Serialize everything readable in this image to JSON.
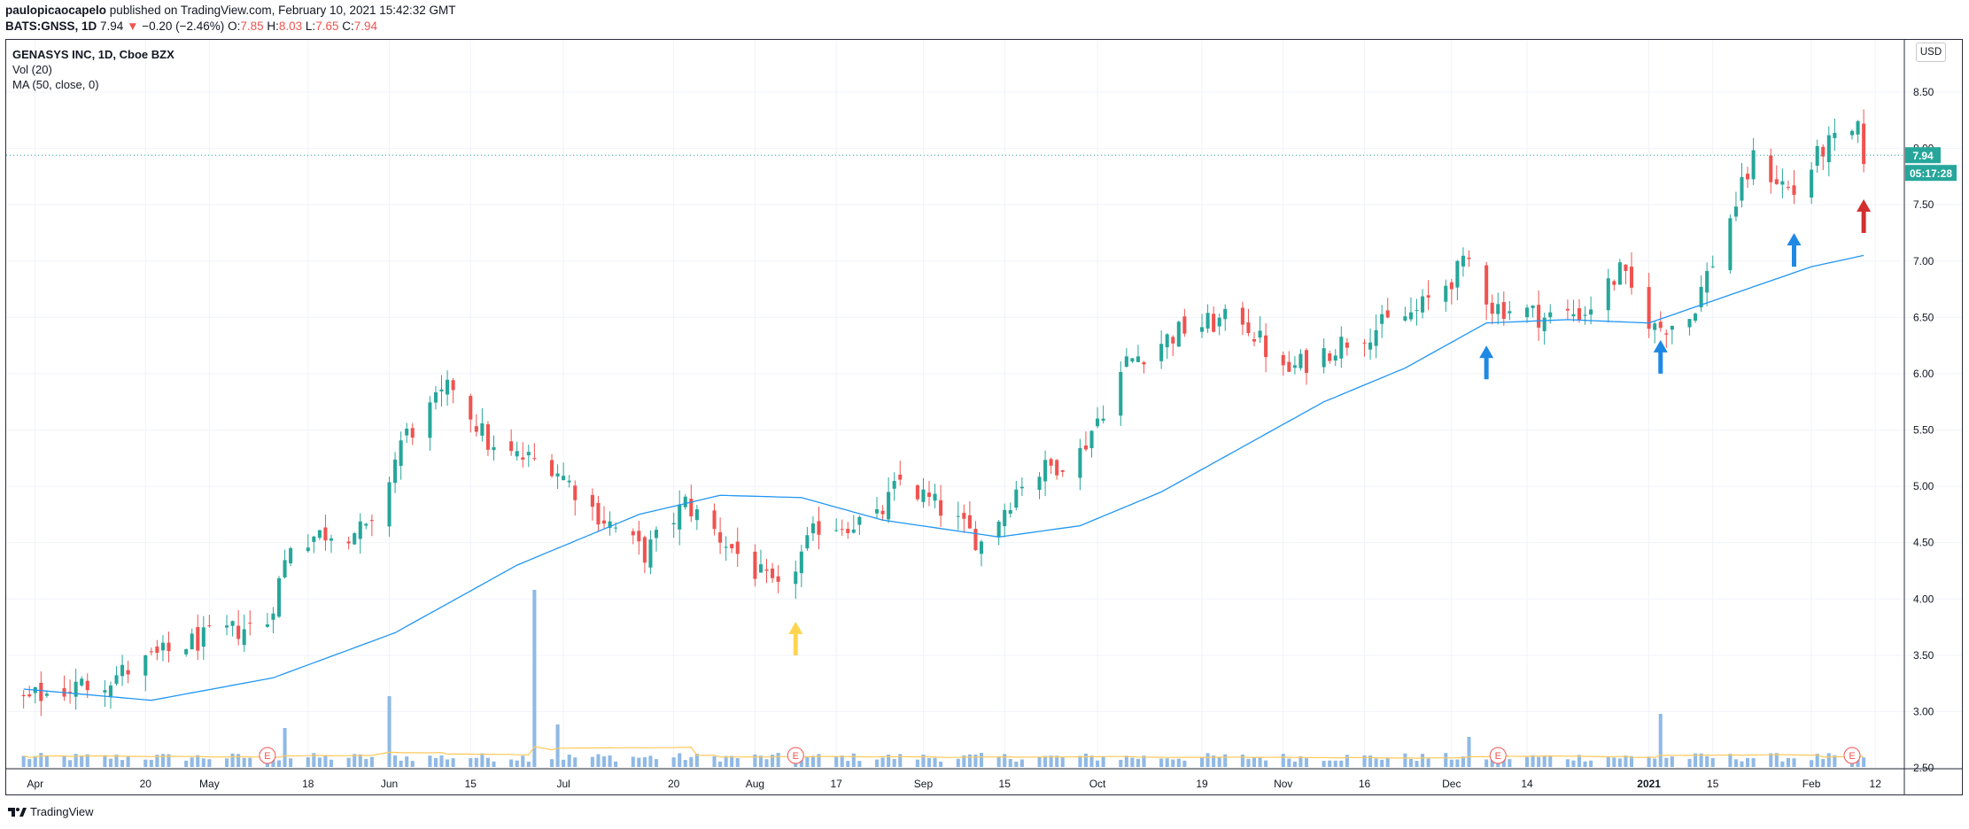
{
  "header": {
    "user": "paulopicaocapelo",
    "published_text": "published on TradingView.com, February 10, 2021 15:42:32 GMT",
    "symbol": "BATS:GNSS, 1D",
    "last": "7.94",
    "arrow": "▼",
    "change": "−0.20 (−2.46%)",
    "o_label": "O:",
    "o_value": "7.85",
    "h_label": "H:",
    "h_value": "8.03",
    "l_label": "L:",
    "l_value": "7.65",
    "c_label": "C:",
    "c_value": "7.94"
  },
  "legend": {
    "title": "GENASYS INC, 1D, Cboe BZX",
    "volume": "Vol (20)",
    "ma": "MA (50, close, 0)"
  },
  "currency": "USD",
  "footer": {
    "brand": "TradingView",
    "logo_icon": "tradingview-logo-icon"
  },
  "colors": {
    "up": "#26a69a",
    "down": "#ef5350",
    "ma": "#2196f3",
    "volume": "#8fb9e6",
    "volume_ma": "#ffc85a",
    "price_line": "#26a69a",
    "arrow_yellow": "#ffd54f",
    "arrow_blue": "#1e88e5",
    "arrow_red": "#d32f2f",
    "earnings": "#ef5350"
  },
  "chart_data": {
    "type": "candlestick",
    "ticker": "GNSS",
    "interval": "1D",
    "x_ticks": [
      "Apr",
      "20",
      "May",
      "18",
      "Jun",
      "15",
      "Jul",
      "20",
      "Aug",
      "17",
      "Sep",
      "15",
      "Oct",
      "19",
      "Nov",
      "16",
      "Dec",
      "14",
      "2021",
      "15",
      "Feb",
      "12"
    ],
    "y_ticks": [
      "8.50",
      "8.00",
      "7.50",
      "7.00",
      "6.50",
      "6.00",
      "5.50",
      "5.00",
      "4.50",
      "4.00",
      "3.50",
      "3.00",
      "2.50"
    ],
    "ylim": [
      2.5,
      8.5
    ],
    "last_price_label": "7.94",
    "countdown_label": "05:17:28",
    "earnings_marker": "E",
    "earnings_dates": [
      "2020-05-11",
      "2020-08-10",
      "2020-12-09",
      "2021-02-08"
    ],
    "price_key_points": [
      {
        "date": "2020-03-30",
        "close": 3.1
      },
      {
        "date": "2020-04-14",
        "close": 3.3
      },
      {
        "date": "2020-04-27",
        "close": 3.6
      },
      {
        "date": "2020-05-11",
        "close": 3.8
      },
      {
        "date": "2020-05-15",
        "close": 4.5
      },
      {
        "date": "2020-05-22",
        "close": 4.6
      },
      {
        "date": "2020-05-29",
        "close": 4.6
      },
      {
        "date": "2020-06-03",
        "close": 5.4
      },
      {
        "date": "2020-06-12",
        "close": 5.9
      },
      {
        "date": "2020-06-19",
        "close": 5.3
      },
      {
        "date": "2020-06-29",
        "close": 5.2
      },
      {
        "date": "2020-07-06",
        "close": 4.8
      },
      {
        "date": "2020-07-15",
        "close": 4.4
      },
      {
        "date": "2020-07-22",
        "close": 4.85
      },
      {
        "date": "2020-07-29",
        "close": 4.5
      },
      {
        "date": "2020-08-07",
        "close": 4.05
      },
      {
        "date": "2020-08-14",
        "close": 4.65
      },
      {
        "date": "2020-08-24",
        "close": 4.7
      },
      {
        "date": "2020-08-28",
        "close": 5.05
      },
      {
        "date": "2020-09-04",
        "close": 4.8
      },
      {
        "date": "2020-09-11",
        "close": 4.5
      },
      {
        "date": "2020-09-18",
        "close": 5.05
      },
      {
        "date": "2020-09-28",
        "close": 5.3
      },
      {
        "date": "2020-10-06",
        "close": 6.1
      },
      {
        "date": "2020-10-16",
        "close": 6.4
      },
      {
        "date": "2020-10-26",
        "close": 6.5
      },
      {
        "date": "2020-11-02",
        "close": 6.0
      },
      {
        "date": "2020-11-13",
        "close": 6.3
      },
      {
        "date": "2020-11-25",
        "close": 6.55
      },
      {
        "date": "2020-12-04",
        "close": 7.0
      },
      {
        "date": "2020-12-08",
        "close": 6.6
      },
      {
        "date": "2020-12-14",
        "close": 6.55
      },
      {
        "date": "2020-12-17",
        "close": 6.5
      },
      {
        "date": "2020-12-24",
        "close": 6.55
      },
      {
        "date": "2020-12-30",
        "close": 6.9
      },
      {
        "date": "2021-01-05",
        "close": 6.4
      },
      {
        "date": "2021-01-11",
        "close": 6.5
      },
      {
        "date": "2021-01-15",
        "close": 7.0
      },
      {
        "date": "2021-01-22",
        "close": 7.9
      },
      {
        "date": "2021-01-29",
        "close": 7.6
      },
      {
        "date": "2021-02-03",
        "close": 8.0
      },
      {
        "date": "2021-02-09",
        "close": 8.14
      },
      {
        "date": "2021-02-10",
        "close": 7.94
      }
    ],
    "ma50_key_points": [
      {
        "date": "2020-03-30",
        "value": 3.2
      },
      {
        "date": "2020-04-21",
        "value": 3.1
      },
      {
        "date": "2020-05-12",
        "value": 3.3
      },
      {
        "date": "2020-06-02",
        "value": 3.7
      },
      {
        "date": "2020-06-23",
        "value": 4.3
      },
      {
        "date": "2020-07-14",
        "value": 4.75
      },
      {
        "date": "2020-07-28",
        "value": 4.92
      },
      {
        "date": "2020-08-11",
        "value": 4.9
      },
      {
        "date": "2020-08-25",
        "value": 4.7
      },
      {
        "date": "2020-09-14",
        "value": 4.55
      },
      {
        "date": "2020-09-28",
        "value": 4.65
      },
      {
        "date": "2020-10-12",
        "value": 4.95
      },
      {
        "date": "2020-10-26",
        "value": 5.35
      },
      {
        "date": "2020-11-09",
        "value": 5.75
      },
      {
        "date": "2020-11-23",
        "value": 6.05
      },
      {
        "date": "2020-12-07",
        "value": 6.45
      },
      {
        "date": "2020-12-21",
        "value": 6.48
      },
      {
        "date": "2021-01-04",
        "value": 6.45
      },
      {
        "date": "2021-01-18",
        "value": 6.7
      },
      {
        "date": "2021-02-01",
        "value": 6.95
      },
      {
        "date": "2021-02-10",
        "value": 7.05
      }
    ],
    "volume_relative_key_points": [
      {
        "date": "2020-05-14",
        "value": 0.22
      },
      {
        "date": "2020-06-01",
        "value": 0.4
      },
      {
        "date": "2020-06-26",
        "value": 1.0
      },
      {
        "date": "2020-06-30",
        "value": 0.24
      },
      {
        "date": "2020-12-04",
        "value": 0.17
      },
      {
        "date": "2021-01-06",
        "value": 0.3
      }
    ],
    "annotations": [
      {
        "type": "arrow-up",
        "color": "yellow",
        "date": "2020-08-10",
        "near_price": 3.5
      },
      {
        "type": "arrow-up",
        "color": "blue",
        "date": "2020-12-07",
        "near_price": 5.95
      },
      {
        "type": "arrow-up",
        "color": "blue",
        "date": "2021-01-06",
        "near_price": 6.0
      },
      {
        "type": "arrow-up",
        "color": "blue",
        "date": "2021-01-29",
        "near_price": 6.95
      },
      {
        "type": "arrow-up",
        "color": "red",
        "date": "2021-02-10",
        "near_price": 7.25
      }
    ],
    "grid": true,
    "y_axis_side": "right"
  }
}
